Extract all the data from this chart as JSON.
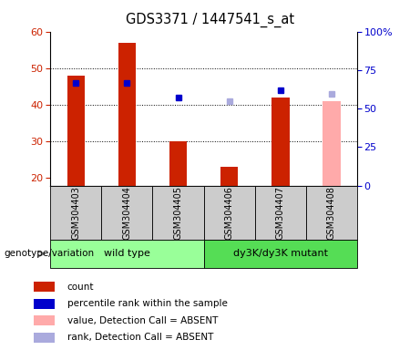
{
  "title": "GDS3371 / 1447541_s_at",
  "samples": [
    "GSM304403",
    "GSM304404",
    "GSM304405",
    "GSM304406",
    "GSM304407",
    "GSM304408"
  ],
  "count_values": [
    48,
    57,
    30,
    23,
    42,
    null
  ],
  "count_absent_values": [
    null,
    null,
    null,
    null,
    null,
    41
  ],
  "percentile_values_left_scale": [
    46,
    46,
    42,
    null,
    44,
    null
  ],
  "percentile_absent_values_left_scale": [
    null,
    null,
    null,
    41,
    null,
    43
  ],
  "ylim_left": [
    18,
    60
  ],
  "ylim_right": [
    0,
    100
  ],
  "yticks_left": [
    20,
    30,
    40,
    50,
    60
  ],
  "ytick_labels_right": [
    "0",
    "25",
    "50",
    "75",
    "100%"
  ],
  "ytick_vals_right": [
    0,
    25,
    50,
    75,
    100
  ],
  "bar_width": 0.35,
  "red_color": "#cc2200",
  "pink_color": "#ffaaaa",
  "blue_color": "#0000cc",
  "light_blue_color": "#aaaadd",
  "sample_box_color": "#cccccc",
  "wt_color": "#99ff99",
  "mutant_color": "#66ee66",
  "grid_color": "black",
  "groups": [
    {
      "label": "wild type",
      "start": 0,
      "end": 3,
      "color": "#99ff99"
    },
    {
      "label": "dy3K/dy3K mutant",
      "start": 3,
      "end": 6,
      "color": "#55dd55"
    }
  ],
  "legend_items": [
    {
      "label": "count",
      "color": "#cc2200"
    },
    {
      "label": "percentile rank within the sample",
      "color": "#0000cc"
    },
    {
      "label": "value, Detection Call = ABSENT",
      "color": "#ffaaaa"
    },
    {
      "label": "rank, Detection Call = ABSENT",
      "color": "#aaaadd"
    }
  ],
  "main_axes": [
    0.12,
    0.47,
    0.73,
    0.44
  ],
  "sample_axes": [
    0.12,
    0.315,
    0.73,
    0.155
  ],
  "group_axes": [
    0.12,
    0.235,
    0.73,
    0.08
  ]
}
